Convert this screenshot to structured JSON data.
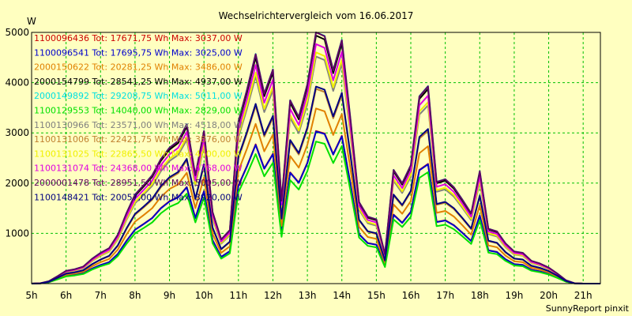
{
  "chart_data": {
    "type": "line",
    "title": "Wechselrichtervergleich vom 16.06.2017",
    "ylabel": "W",
    "footer": "SunnyReport pinxit",
    "ylim": [
      0,
      5000
    ],
    "yticks": [
      1000,
      2000,
      3000,
      4000,
      5000
    ],
    "xlim": [
      5,
      21.5
    ],
    "x_tick_labels": [
      "5h",
      "6h",
      "7h",
      "8h",
      "9h",
      "10h",
      "11h",
      "12h",
      "13h",
      "14h",
      "15h",
      "16h",
      "17h",
      "18h",
      "19h",
      "20h",
      "21h"
    ],
    "grid": true,
    "legend_position": "top-left",
    "x": [
      5.0,
      5.25,
      5.5,
      5.75,
      6.0,
      6.25,
      6.5,
      6.75,
      7.0,
      7.25,
      7.5,
      7.75,
      8.0,
      8.25,
      8.5,
      8.75,
      9.0,
      9.25,
      9.5,
      9.75,
      10.0,
      10.25,
      10.5,
      10.75,
      11.0,
      11.25,
      11.5,
      11.75,
      12.0,
      12.25,
      12.5,
      12.75,
      13.0,
      13.25,
      13.5,
      13.75,
      14.0,
      14.25,
      14.5,
      14.75,
      15.0,
      15.25,
      15.5,
      15.75,
      16.0,
      16.25,
      16.5,
      16.75,
      17.0,
      17.25,
      17.5,
      17.75,
      18.0,
      18.25,
      18.5,
      18.75,
      19.0,
      19.25,
      19.5,
      19.75,
      20.0,
      20.25,
      20.5,
      20.75,
      21.0,
      21.25,
      21.5
    ],
    "reference": [
      0,
      5,
      35,
      110,
      190,
      215,
      255,
      370,
      460,
      530,
      730,
      1050,
      1330,
      1470,
      1620,
      1860,
      2030,
      2130,
      2380,
      1620,
      2280,
      1070,
      660,
      800,
      2420,
      2900,
      3430,
      2840,
      3200,
      1240,
      2740,
      2490,
      2980,
      3760,
      3700,
      3190,
      3640,
      2460,
      1220,
      1000,
      960,
      440,
      1700,
      1500,
      1770,
      2800,
      2950,
      1520,
      1560,
      1440,
      1250,
      1050,
      1680,
      820,
      780,
      600,
      480,
      460,
      340,
      300,
      240,
      150,
      50,
      5,
      0,
      0,
      0
    ],
    "series": [
      {
        "name": "1100096436 Tot: 17671,75 Wh Max: 3037,00 W",
        "color": "#cc0000",
        "f": 0.808
      },
      {
        "name": "1100096541 Tot: 17695,75 Wh Max: 3025,00 W",
        "color": "#0000cc",
        "f": 0.805
      },
      {
        "name": "2000150622 Tot: 20281,25 Wh Max: 3486,00 W",
        "color": "#e08000",
        "f": 0.927
      },
      {
        "name": "2000154799 Tot: 28541,25 Wh Max: 4937,00 W",
        "color": "#000000",
        "f": 1.313
      },
      {
        "name": "2000149892 Tot: 29208,75 Wh Max: 5011,00 W",
        "color": "#00e0e0",
        "f": 1.333
      },
      {
        "name": "1100129553 Tot: 14040,00 Wh Max: 2829,00 W",
        "color": "#00e000",
        "f": 0.752
      },
      {
        "name": "1100130966 Tot: 23571,00 Wh Max: 4518,00 W",
        "color": "#808080",
        "f": 1.202
      },
      {
        "name": "1100131006 Tot: 22421,75 Wh Max: 3876,00 W",
        "color": "#c08030",
        "f": 1.031
      },
      {
        "name": "1100131025 Tot: 22865,50 Wh Max: 4600,00 W",
        "color": "#f0f000",
        "f": 1.224
      },
      {
        "name": "1100131074 Tot: 24368,00 Wh Max: 4768,00 W",
        "color": "#e000e0",
        "f": 1.268
      },
      {
        "name": "2000001478 Tot: 28951,50 Wh Max: 5005,00 W",
        "color": "#600060",
        "f": 1.331
      },
      {
        "name": "1100148421 Tot: 20057,00 Wh Max: 3920,00 W",
        "color": "#000080",
        "f": 1.043
      }
    ]
  }
}
